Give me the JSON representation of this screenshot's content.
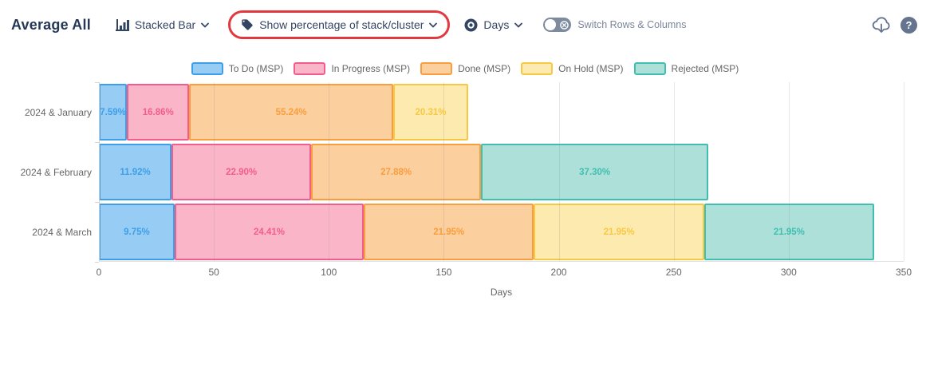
{
  "header": {
    "title": "Average All",
    "chart_type_label": "Stacked Bar",
    "percentage_label": "Show percentage of stack/cluster",
    "measure_label": "Days",
    "switch_label": "Switch Rows & Columns",
    "icons": {
      "chart_type": "bar-chart-icon",
      "percentage": "tag-icon",
      "measure": "target-icon",
      "export": "cloud-download-icon",
      "help": "question-icon"
    }
  },
  "colors": {
    "annotation_highlight": "#e2393e",
    "toolbar_text": "#344563",
    "title_text": "#253858",
    "muted_text": "#7a869a",
    "axis_text": "#666666",
    "toggle_off": "#7e8a9e",
    "toolbar_icon": "#66758f"
  },
  "chart_data": {
    "type": "bar",
    "orientation": "horizontal",
    "stacked": true,
    "title": "",
    "xlabel": "Days",
    "xlim": [
      0,
      350
    ],
    "xticks": [
      0,
      50,
      100,
      150,
      200,
      250,
      300,
      350
    ],
    "grid": true,
    "legend_position": "top",
    "categories": [
      "2024 & January",
      "2024 & February",
      "2024 & March"
    ],
    "totals_days": [
      160.6,
      265.1,
      337.1
    ],
    "series": [
      {
        "name": "To Do (MSP)",
        "fill": "#97cdf5",
        "stroke": "#3e9ee8",
        "values_days": [
          12.2,
          31.6,
          32.9
        ],
        "labels": [
          "7.59%",
          "11.92%",
          "9.75%"
        ]
      },
      {
        "name": "In Progress (MSP)",
        "fill": "#fab5c9",
        "stroke": "#f25e8b",
        "values_days": [
          27.1,
          60.7,
          82.3
        ],
        "labels": [
          "16.86%",
          "22.90%",
          "24.41%"
        ]
      },
      {
        "name": "Done (MSP)",
        "fill": "#fccf9f",
        "stroke": "#f99e3e",
        "values_days": [
          88.7,
          73.9,
          74.0
        ],
        "labels": [
          "55.24%",
          "27.88%",
          "21.95%"
        ]
      },
      {
        "name": "On Hold (MSP)",
        "fill": "#fdeaae",
        "stroke": "#f7c843",
        "values_days": [
          32.6,
          0,
          74.0
        ],
        "labels": [
          "20.31%",
          "",
          "21.95%"
        ]
      },
      {
        "name": "Rejected (MSP)",
        "fill": "#ace0d9",
        "stroke": "#40bfb0",
        "values_days": [
          0,
          98.9,
          74.0
        ],
        "labels": [
          "",
          "37.30%",
          "21.95%"
        ]
      }
    ]
  }
}
